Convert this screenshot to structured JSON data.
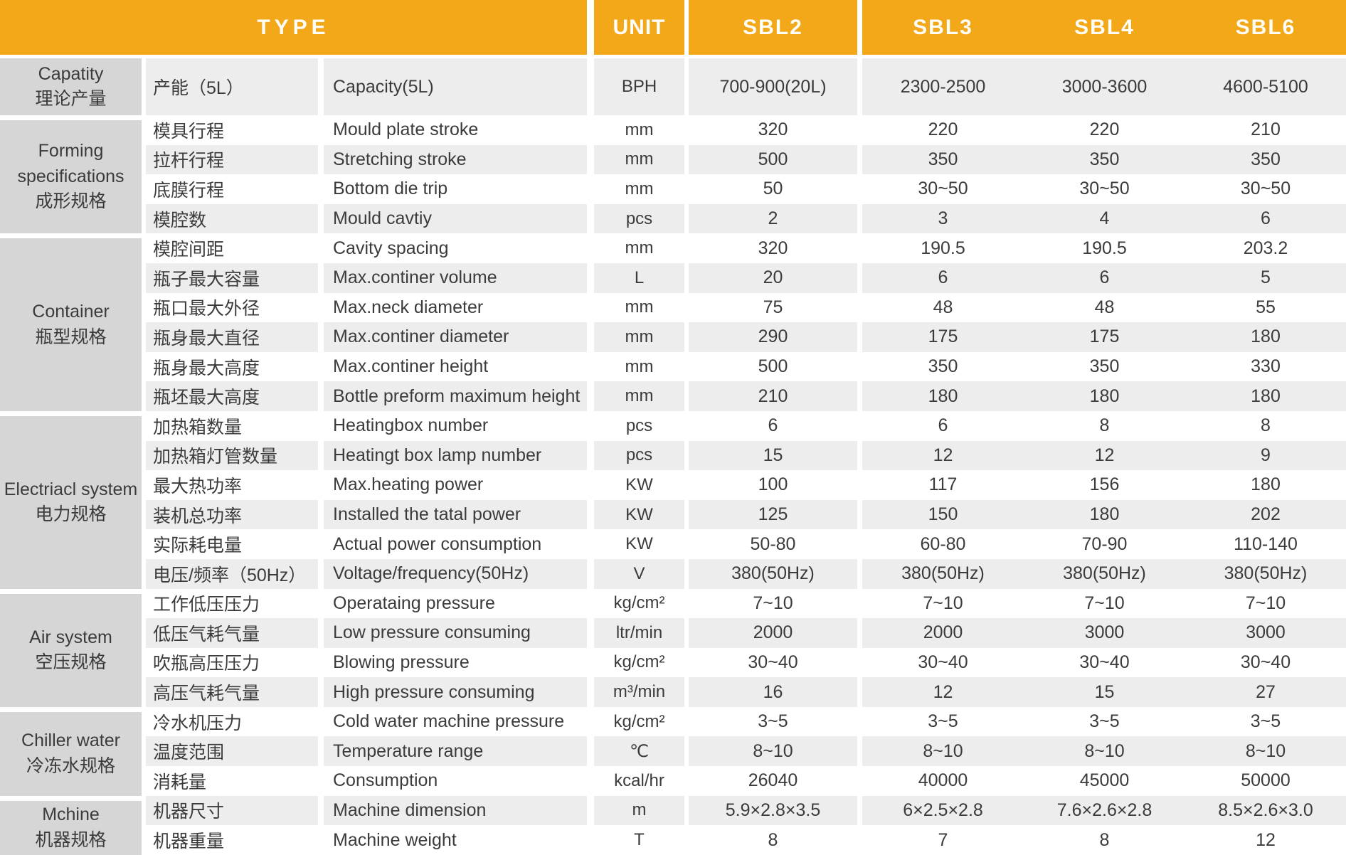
{
  "colors": {
    "header_orange": "#F2A818",
    "header_text": "#FFFEF8",
    "group_gray": "#D6D6D6",
    "row_stripe": "#EDEDED",
    "row_white": "#FFFFFF",
    "body_text": "#3B3B3B"
  },
  "header": {
    "type_label": "TYPE",
    "unit_label": "UNIT",
    "models": [
      "SBL2",
      "SBL3",
      "SBL4",
      "SBL6"
    ]
  },
  "groups": [
    {
      "en": "Capatity",
      "cn": "理论产量",
      "rows": [
        {
          "cn": "产能（5L）",
          "en": "Capacity(5L)",
          "unit": "BPH",
          "values": [
            "700-900(20L)",
            "2300-2500",
            "3000-3600",
            "4600-5100"
          ]
        }
      ]
    },
    {
      "en": "Forming specifications",
      "cn": "成形规格",
      "rows": [
        {
          "cn": "模具行程",
          "en": "Mould plate stroke",
          "unit": "mm",
          "values": [
            "320",
            "220",
            "220",
            "210"
          ]
        },
        {
          "cn": "拉杆行程",
          "en": "Stretching stroke",
          "unit": "mm",
          "values": [
            "500",
            "350",
            "350",
            "350"
          ]
        },
        {
          "cn": "底膜行程",
          "en": "Bottom die trip",
          "unit": "mm",
          "values": [
            "50",
            "30~50",
            "30~50",
            "30~50"
          ]
        },
        {
          "cn": "模腔数",
          "en": "Mould cavtiy",
          "unit": "pcs",
          "values": [
            "2",
            "3",
            "4",
            "6"
          ]
        }
      ]
    },
    {
      "en": "Container",
      "cn": "瓶型规格",
      "rows": [
        {
          "cn": "模腔间距",
          "en": "Cavity spacing",
          "unit": "mm",
          "values": [
            "320",
            "190.5",
            "190.5",
            "203.2"
          ]
        },
        {
          "cn": "瓶子最大容量",
          "en": "Max.continer volume",
          "unit": "L",
          "values": [
            "20",
            "6",
            "6",
            "5"
          ]
        },
        {
          "cn": "瓶口最大外径",
          "en": "Max.neck diameter",
          "unit": "mm",
          "values": [
            "75",
            "48",
            "48",
            "55"
          ]
        },
        {
          "cn": "瓶身最大直径",
          "en": "Max.continer diameter",
          "unit": "mm",
          "values": [
            "290",
            "175",
            "175",
            "180"
          ]
        },
        {
          "cn": "瓶身最大高度",
          "en": "Max.continer height",
          "unit": "mm",
          "values": [
            "500",
            "350",
            "350",
            "330"
          ]
        },
        {
          "cn": "瓶坯最大高度",
          "en": "Bottle preform maximum height",
          "unit": "mm",
          "values": [
            "210",
            "180",
            "180",
            "180"
          ]
        }
      ]
    },
    {
      "en": "Electriacl system",
      "cn": "电力规格",
      "rows": [
        {
          "cn": "加热箱数量",
          "en": "Heatingbox number",
          "unit": "pcs",
          "values": [
            "6",
            "6",
            "8",
            "8"
          ]
        },
        {
          "cn": "加热箱灯管数量",
          "en": "Heatingt box lamp number",
          "unit": "pcs",
          "values": [
            "15",
            "12",
            "12",
            "9"
          ]
        },
        {
          "cn": "最大热功率",
          "en": "Max.heating power",
          "unit": "KW",
          "values": [
            "100",
            "117",
            "156",
            "180"
          ]
        },
        {
          "cn": "装机总功率",
          "en": "Installed the tatal power",
          "unit": "KW",
          "values": [
            "125",
            "150",
            "180",
            "202"
          ]
        },
        {
          "cn": "实际耗电量",
          "en": "Actual power consumption",
          "unit": "KW",
          "values": [
            "50-80",
            "60-80",
            "70-90",
            "110-140"
          ]
        },
        {
          "cn": "电压/频率（50Hz）",
          "en": "Voltage/frequency(50Hz)",
          "unit": "V",
          "values": [
            "380(50Hz)",
            "380(50Hz)",
            "380(50Hz)",
            "380(50Hz)"
          ]
        }
      ]
    },
    {
      "en": "Air system",
      "cn": "空压规格",
      "rows": [
        {
          "cn": "工作低压压力",
          "en": "Operataing pressure",
          "unit": "kg/cm²",
          "values": [
            "7~10",
            "7~10",
            "7~10",
            "7~10"
          ]
        },
        {
          "cn": "低压气耗气量",
          "en": "Low pressure consuming",
          "unit": "ltr/min",
          "values": [
            "2000",
            "2000",
            "3000",
            "3000"
          ]
        },
        {
          "cn": "吹瓶高压压力",
          "en": "Blowing pressure",
          "unit": "kg/cm²",
          "values": [
            "30~40",
            "30~40",
            "30~40",
            "30~40"
          ]
        },
        {
          "cn": "高压气耗气量",
          "en": "High pressure consuming",
          "unit": "m³/min",
          "values": [
            "16",
            "12",
            "15",
            "27"
          ]
        }
      ]
    },
    {
      "en": "Chiller water",
      "cn": "冷冻水规格",
      "rows": [
        {
          "cn": "冷水机压力",
          "en": "Cold water machine pressure",
          "unit": "kg/cm²",
          "values": [
            "3~5",
            "3~5",
            "3~5",
            "3~5"
          ]
        },
        {
          "cn": "温度范围",
          "en": "Temperature range",
          "unit": "℃",
          "values": [
            "8~10",
            "8~10",
            "8~10",
            "8~10"
          ]
        },
        {
          "cn": "消耗量",
          "en": "Consumption",
          "unit": "kcal/hr",
          "values": [
            "26040",
            "40000",
            "45000",
            "50000"
          ]
        }
      ]
    },
    {
      "en": "Mchine",
      "cn": "机器规格",
      "rows": [
        {
          "cn": "机器尺寸",
          "en": "Machine dimension",
          "unit": "m",
          "values": [
            "5.9×2.8×3.5",
            "6×2.5×2.8",
            "7.6×2.6×2.8",
            "8.5×2.6×3.0"
          ]
        },
        {
          "cn": "机器重量",
          "en": "Machine weight",
          "unit": "T",
          "values": [
            "8",
            "7",
            "8",
            "12"
          ]
        }
      ]
    }
  ]
}
